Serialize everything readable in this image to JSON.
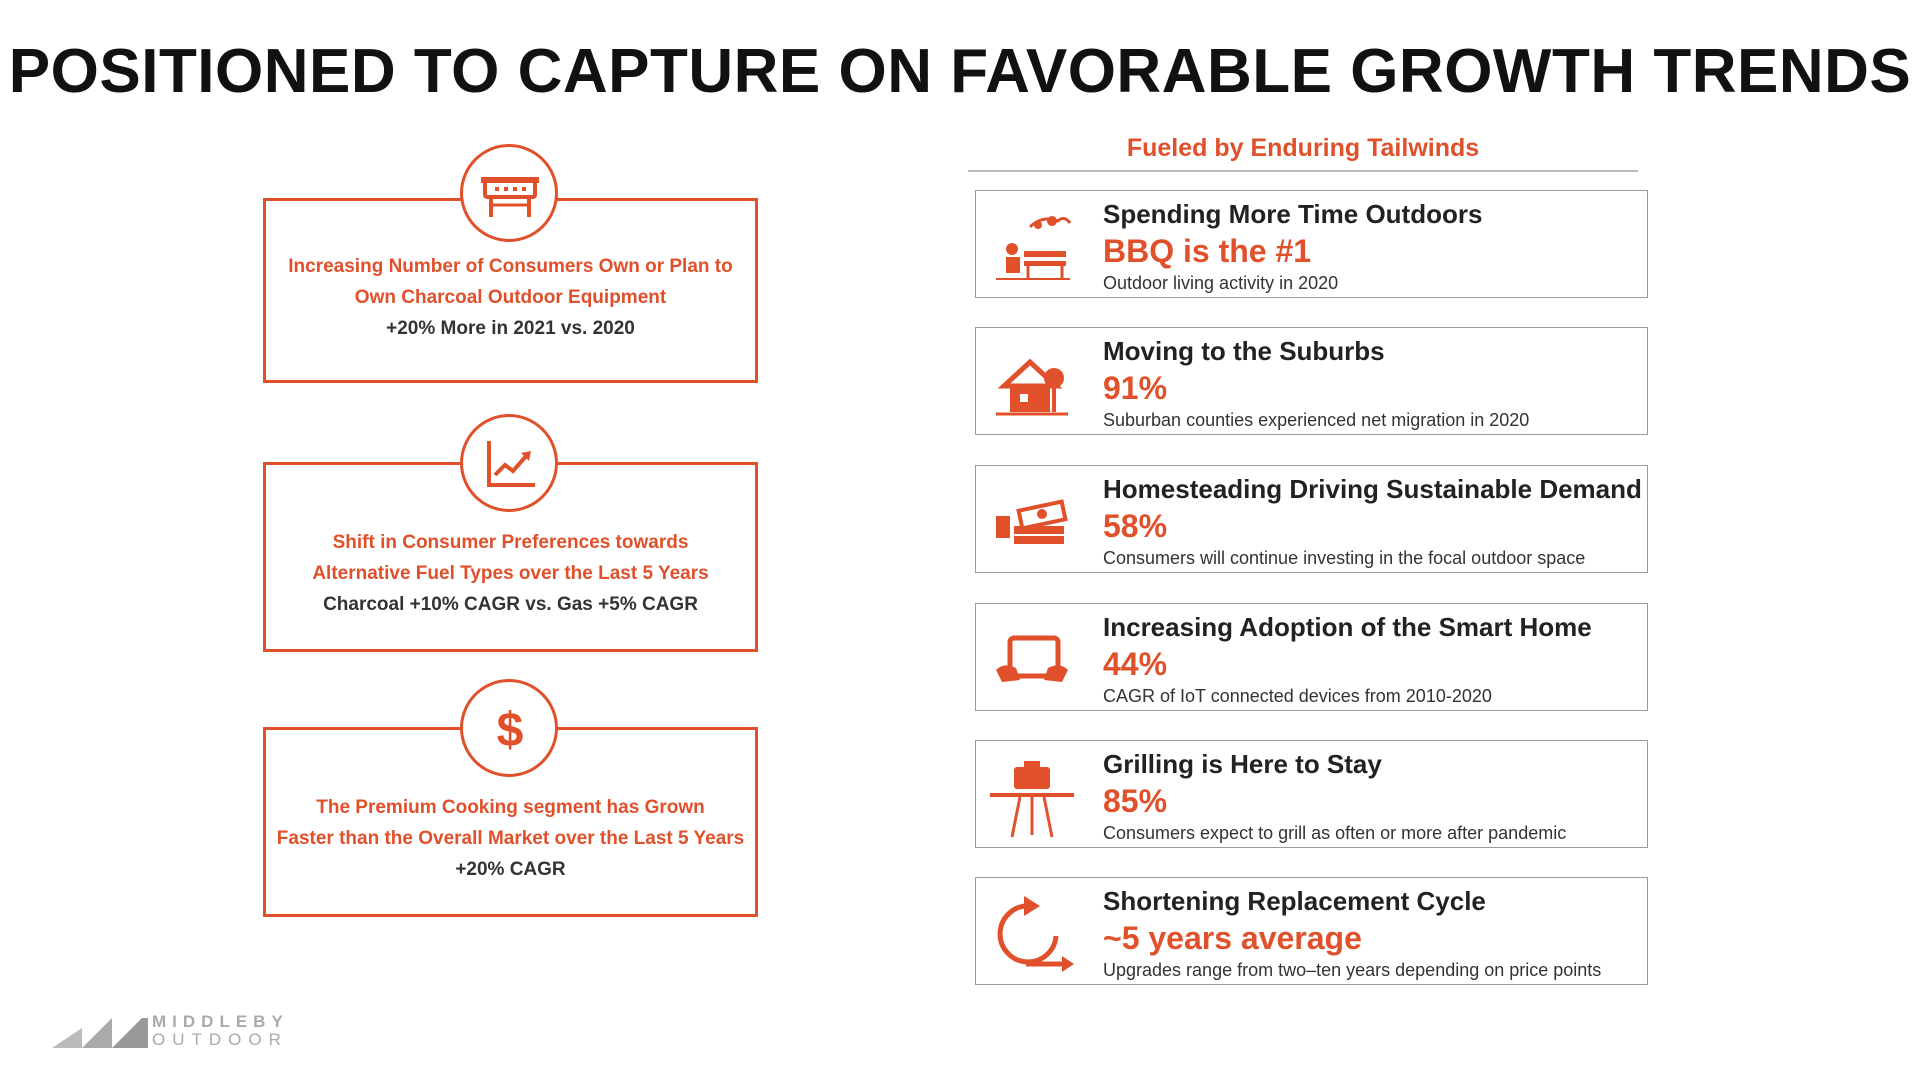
{
  "title": "POSITIONED TO CAPTURE ON FAVORABLE GROWTH TRENDS",
  "left_cards": [
    {
      "line1": "Increasing Number of Consumers Own or Plan to",
      "line2": "Own Charcoal Outdoor Equipment",
      "line3": "+20% More in 2021 vs. 2020",
      "icon": "grill-icon"
    },
    {
      "line1": "Shift in Consumer Preferences towards",
      "line2": "Alternative Fuel Types over the Last 5 Years",
      "line3": "Charcoal +10% CAGR vs. Gas +5% CAGR",
      "icon": "trend-chart-icon"
    },
    {
      "line1": "The Premium Cooking segment has Grown",
      "line2": "Faster than the Overall Market over the Last 5 Years",
      "line3": "+20% CAGR",
      "icon": "dollar-icon"
    }
  ],
  "right_header": "Fueled by Enduring Tailwinds",
  "right_cards": [
    {
      "heading": "Spending More Time Outdoors",
      "stat": "BBQ is the #1",
      "desc": "Outdoor living activity in 2020",
      "icon": "outdoor-bench-icon"
    },
    {
      "heading": "Moving to the Suburbs",
      "stat": "91%",
      "desc": "Suburban counties experienced net migration in 2020",
      "icon": "suburban-house-icon"
    },
    {
      "heading": "Homesteading Driving Sustainable Demand",
      "stat": "58%",
      "desc": "Consumers will continue investing in the focal outdoor space",
      "icon": "money-stack-icon"
    },
    {
      "heading": "Increasing Adoption of the Smart Home",
      "stat": "44%",
      "desc": "CAGR of IoT connected devices from 2010-2020",
      "icon": "tablet-hands-icon"
    },
    {
      "heading": "Grilling is Here to Stay",
      "stat": "85%",
      "desc": "Consumers expect to grill as often or more after pandemic",
      "icon": "kettle-grill-icon"
    },
    {
      "heading": "Shortening Replacement Cycle",
      "stat": "~5 years average",
      "desc": "Upgrades range from two–ten years depending on price points",
      "icon": "replacement-cycle-icon"
    }
  ],
  "logo": {
    "line1": "MIDDLEBY",
    "line2": "OUTDOOR"
  },
  "colors": {
    "accent": "#e0502a",
    "text": "#222222",
    "border": "#9a9a9a"
  }
}
